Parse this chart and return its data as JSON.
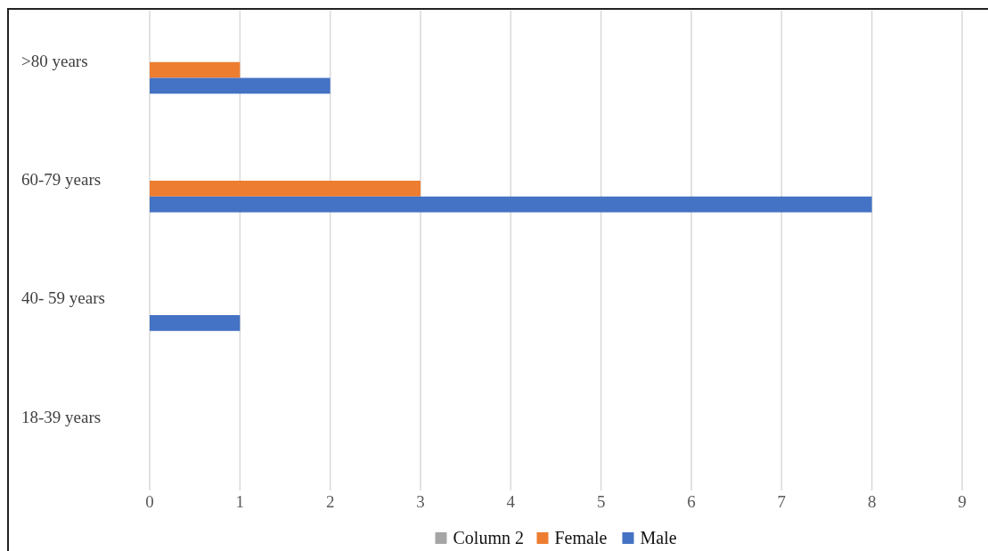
{
  "chart_data": {
    "type": "bar",
    "orientation": "horizontal",
    "categories": [
      ">80 years",
      "60-79 years",
      "40- 59 years",
      "18-39 years"
    ],
    "series": [
      {
        "name": "Column 2",
        "color": "#a5a5a5",
        "values": [
          null,
          null,
          null,
          null
        ]
      },
      {
        "name": "Female",
        "color": "#ed7d31",
        "values": [
          1,
          3,
          0,
          0
        ]
      },
      {
        "name": "Male",
        "color": "#4472c4",
        "values": [
          2,
          8,
          1,
          0
        ]
      }
    ],
    "xlim": [
      0,
      9
    ],
    "xticks": [
      0,
      1,
      2,
      3,
      4,
      5,
      6,
      7,
      8,
      9
    ],
    "grid": "x",
    "legend": "bottom"
  }
}
